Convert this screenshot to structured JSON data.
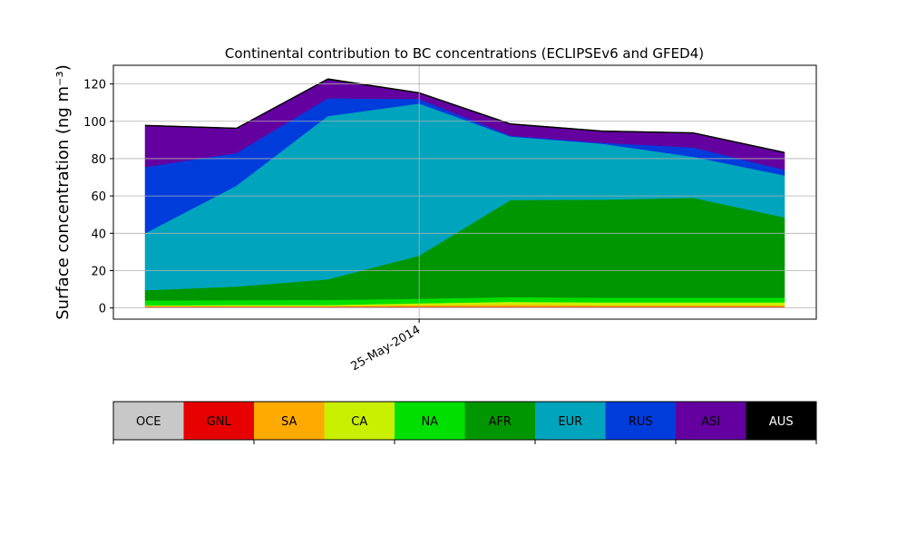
{
  "chart_data": {
    "type": "area",
    "stacked": true,
    "title": "Continental contribution to BC concentrations (ECLIPSEv6 and GFED4)",
    "ylabel": "Surface concentration (ng m⁻³)",
    "xlabel": "",
    "x": [
      "2014-05-22",
      "2014-05-23",
      "2014-05-24",
      "2014-05-25",
      "2014-05-26",
      "2014-05-27",
      "2014-05-28",
      "2014-05-29"
    ],
    "xticks": [
      {
        "x": "2014-05-25",
        "label": "25-May-2014"
      }
    ],
    "ylim": [
      -6,
      130
    ],
    "yticks": [
      0,
      20,
      40,
      60,
      80,
      100,
      120
    ],
    "grid": true,
    "series": [
      {
        "name": "OCE",
        "color": "#c8c8c8",
        "values": [
          0.5,
          0.5,
          0.5,
          0.5,
          0.5,
          0.5,
          0.5,
          0.5
        ]
      },
      {
        "name": "GNL",
        "color": "#e60000",
        "values": [
          0.2,
          0.2,
          0.2,
          0.2,
          0.2,
          0.2,
          0.2,
          0.2
        ]
      },
      {
        "name": "SA",
        "color": "#ffaa00",
        "values": [
          0.2,
          0.2,
          0.2,
          0.8,
          1.0,
          0.8,
          0.8,
          0.8
        ]
      },
      {
        "name": "CA",
        "color": "#c8f000",
        "values": [
          0.5,
          0.7,
          0.7,
          1.0,
          1.6,
          1.5,
          1.5,
          1.5
        ]
      },
      {
        "name": "NA",
        "color": "#00e000",
        "values": [
          2.6,
          2.6,
          2.7,
          2.5,
          2.5,
          2.5,
          2.5,
          2.5
        ]
      },
      {
        "name": "AFR",
        "color": "#009600",
        "values": [
          5.5,
          7.3,
          11.0,
          23.0,
          52.0,
          52.5,
          53.5,
          43.0
        ]
      },
      {
        "name": "EUR",
        "color": "#00a5bd",
        "values": [
          30.5,
          54.0,
          87.5,
          81.5,
          34.0,
          30.0,
          22.0,
          22.5
        ]
      },
      {
        "name": "RUS",
        "color": "#003cdc",
        "values": [
          35.5,
          17.5,
          9.5,
          2.5,
          0.5,
          0.5,
          5.0,
          3.0
        ]
      },
      {
        "name": "ASI",
        "color": "#6400a0",
        "values": [
          22.0,
          13.0,
          10.0,
          3.0,
          6.0,
          6.0,
          7.5,
          9.0
        ]
      },
      {
        "name": "AUS",
        "color": "#000000",
        "values": [
          0.5,
          0.5,
          0.6,
          0.5,
          0.5,
          0.5,
          0.5,
          0.5
        ]
      }
    ]
  }
}
